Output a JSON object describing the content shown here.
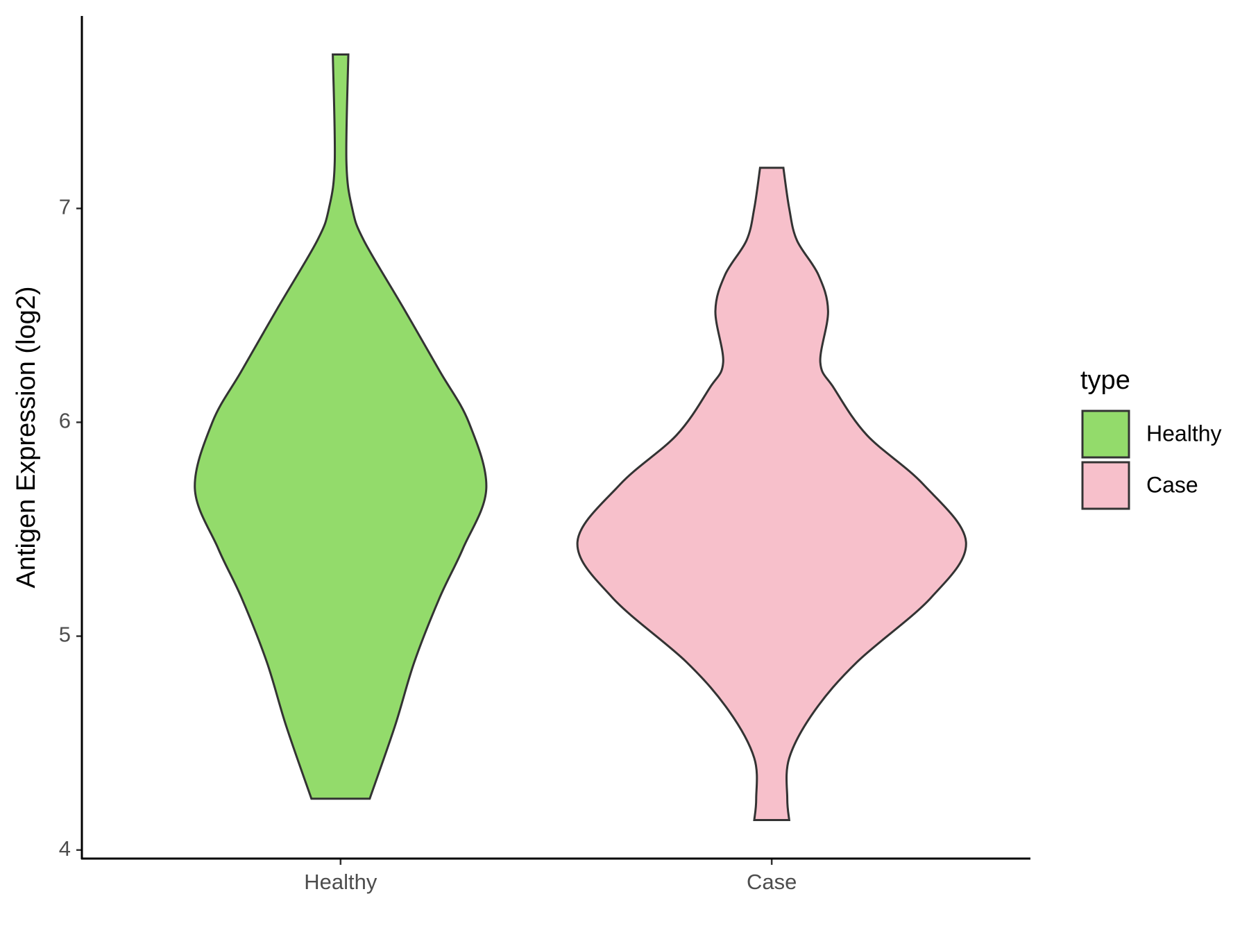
{
  "chart_data": {
    "type": "violin",
    "y_label": "Antigen Expression (log2)",
    "categories": [
      "Healthy",
      "Case"
    ],
    "legend_title": "type",
    "legend": "right",
    "ylim": [
      3.96,
      7.9
    ],
    "yticks": [
      4,
      5,
      6,
      7
    ],
    "series": [
      {
        "name": "Healthy",
        "color": "#93DB6B",
        "y": [
          7.72,
          7.22,
          7.0,
          6.85,
          6.54,
          6.24,
          6.0,
          5.69,
          5.41,
          5.18,
          4.88,
          4.58,
          4.24
        ],
        "density": [
          0.04,
          0.03,
          0.06,
          0.12,
          0.32,
          0.51,
          0.66,
          0.75,
          0.63,
          0.51,
          0.38,
          0.28,
          0.15
        ]
      },
      {
        "name": "Case",
        "color": "#F7C0CB",
        "y": [
          7.19,
          7.0,
          6.85,
          6.69,
          6.52,
          6.28,
          6.16,
          5.94,
          5.71,
          5.44,
          5.18,
          4.88,
          4.65,
          4.43,
          4.24,
          4.14
        ],
        "density": [
          0.06,
          0.09,
          0.13,
          0.24,
          0.29,
          0.25,
          0.32,
          0.49,
          0.78,
          1.0,
          0.82,
          0.44,
          0.22,
          0.09,
          0.08,
          0.09
        ]
      }
    ]
  }
}
